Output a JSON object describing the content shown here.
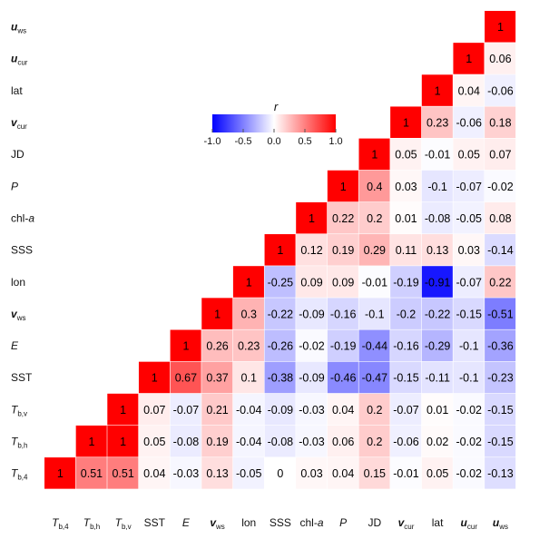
{
  "chart_data": {
    "type": "heatmap",
    "variables": [
      {
        "base": "T",
        "sub": "b,4",
        "italic": true,
        "bold": false
      },
      {
        "base": "T",
        "sub": "b,h",
        "italic": true,
        "bold": false
      },
      {
        "base": "T",
        "sub": "b,v",
        "italic": true,
        "bold": false
      },
      {
        "base": "SST",
        "sub": "",
        "italic": false,
        "bold": false
      },
      {
        "base": "E",
        "sub": "",
        "italic": true,
        "bold": false
      },
      {
        "base": "v",
        "sub": "ws",
        "italic": true,
        "bold": true
      },
      {
        "base": "lon",
        "sub": "",
        "italic": false,
        "bold": false
      },
      {
        "base": "SSS",
        "sub": "",
        "italic": false,
        "bold": false
      },
      {
        "base": "chl-",
        "sub": "",
        "italic": false,
        "bold": false,
        "suffix_italic": "a"
      },
      {
        "base": "P",
        "sub": "",
        "italic": true,
        "bold": false
      },
      {
        "base": "JD",
        "sub": "",
        "italic": false,
        "bold": false
      },
      {
        "base": "v",
        "sub": "cur",
        "italic": true,
        "bold": true
      },
      {
        "base": "lat",
        "sub": "",
        "italic": false,
        "bold": false
      },
      {
        "base": "u",
        "sub": "cur",
        "italic": true,
        "bold": true
      },
      {
        "base": "u",
        "sub": "ws",
        "italic": true,
        "bold": true
      }
    ],
    "matrix": [
      [
        1
      ],
      [
        0.51,
        1
      ],
      [
        0.51,
        1,
        1
      ],
      [
        0.04,
        0.05,
        0.07,
        1
      ],
      [
        -0.03,
        -0.08,
        -0.07,
        0.67,
        1
      ],
      [
        0.13,
        0.19,
        0.21,
        0.37,
        0.26,
        1
      ],
      [
        -0.05,
        -0.04,
        -0.04,
        0.1,
        0.23,
        0.3,
        1
      ],
      [
        0,
        -0.08,
        -0.09,
        -0.38,
        -0.26,
        -0.22,
        -0.25,
        1
      ],
      [
        0.03,
        -0.03,
        -0.03,
        -0.09,
        -0.02,
        -0.09,
        0.09,
        0.12,
        1
      ],
      [
        0.04,
        0.06,
        0.04,
        -0.46,
        -0.19,
        -0.16,
        0.09,
        0.19,
        0.22,
        1
      ],
      [
        0.15,
        0.2,
        0.2,
        -0.47,
        -0.44,
        -0.1,
        -0.01,
        0.29,
        0.2,
        0.4,
        1
      ],
      [
        -0.01,
        -0.06,
        -0.07,
        -0.15,
        -0.16,
        -0.2,
        -0.19,
        0.11,
        0.01,
        0.03,
        0.05,
        1
      ],
      [
        0.05,
        0.02,
        0.01,
        -0.11,
        -0.29,
        -0.22,
        -0.91,
        0.13,
        -0.08,
        -0.1,
        -0.01,
        0.23,
        1
      ],
      [
        -0.02,
        -0.02,
        -0.02,
        -0.1,
        -0.1,
        -0.15,
        -0.07,
        0.03,
        -0.05,
        -0.07,
        0.05,
        -0.06,
        0.04,
        1
      ],
      [
        -0.13,
        -0.15,
        -0.15,
        -0.23,
        -0.36,
        -0.51,
        0.22,
        -0.14,
        0.08,
        -0.02,
        0.07,
        0.18,
        -0.06,
        0.06,
        1
      ]
    ],
    "colorbar": {
      "title": "r",
      "ticks": [
        "-1.0",
        "-0.5",
        "0.0",
        "0.5",
        "1.0"
      ],
      "range": [
        -1,
        1
      ],
      "colors": {
        "low": "#0000ff",
        "mid": "#ffffff",
        "high": "#ff0000"
      }
    }
  }
}
